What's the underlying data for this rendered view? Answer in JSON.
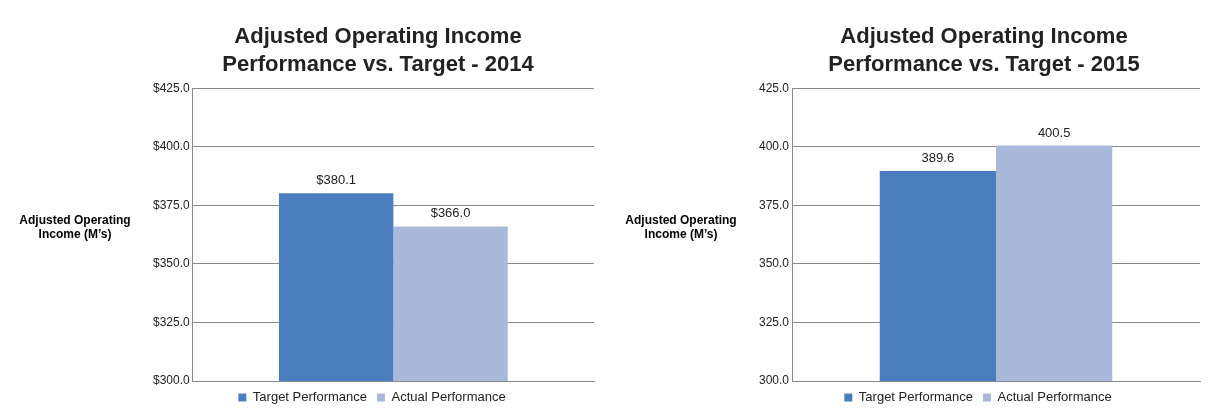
{
  "chart_data": [
    {
      "type": "bar",
      "title": "Adjusted Operating Income Performance vs. Target - 2014",
      "ylabel": "Adjusted Operating Income (M’s)",
      "categories": [
        null
      ],
      "series": [
        {
          "name": "Target Performance",
          "color": "#4a7ebf",
          "values": [
            380.1
          ],
          "value_labels": [
            "$380.1"
          ]
        },
        {
          "name": "Actual Performance",
          "color": "#a9b9d9",
          "values": [
            366.0
          ],
          "value_labels": [
            "$366.0"
          ]
        }
      ],
      "ylim": [
        300,
        425
      ],
      "yticks": [
        {
          "value": 300,
          "label": "$300.0"
        },
        {
          "value": 325,
          "label": "$325.0"
        },
        {
          "value": 350,
          "label": "$350.0"
        },
        {
          "value": 375,
          "label": "$375.0"
        },
        {
          "value": 400,
          "label": "$400.0"
        },
        {
          "value": 425,
          "label": "$425.0"
        }
      ],
      "grid": "y",
      "legend": "bottom",
      "tick_labels": "y"
    },
    {
      "type": "bar",
      "title": "Adjusted Operating Income Performance vs. Target - 2015",
      "ylabel": "Adjusted Operating Income (M’s)",
      "categories": [
        null
      ],
      "series": [
        {
          "name": "Target Performance",
          "color": "#4a7ebf",
          "values": [
            389.6
          ]
        },
        {
          "name": "Actual Performance",
          "color": "#a9b9d9",
          "values": [
            400.5
          ]
        }
      ],
      "ylim": [
        300,
        425
      ],
      "yticks": [
        {
          "value": 300,
          "label": "300.0"
        },
        {
          "value": 325,
          "label": "325.0"
        },
        {
          "value": 350,
          "label": "350.0"
        },
        {
          "value": 375,
          "label": "375.0"
        },
        {
          "value": 400,
          "label": "400.0"
        },
        {
          "value": 425,
          "label": "425.0"
        }
      ],
      "grid": "y",
      "legend": "bottom",
      "tick_labels": "y",
      "data_labels": true
    }
  ]
}
